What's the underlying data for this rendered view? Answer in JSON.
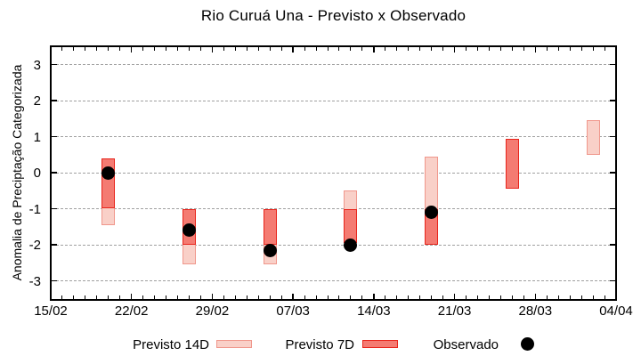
{
  "page": {
    "background": "#ffffff"
  },
  "chart_data": {
    "type": "range-bar+scatter",
    "title": "Rio Curuá Una - Previsto x Observado",
    "ylabel": "Anomalia de Preciptação Categorizada",
    "ylim": [
      -3.5,
      3.5
    ],
    "yticks": [
      3,
      2,
      1,
      0,
      -1,
      -2,
      -3
    ],
    "grid": "horizontal dashed lines at integer y values",
    "x_axis": {
      "total_days": 49,
      "major_tick_days": [
        0,
        7,
        14,
        21,
        28,
        35,
        42,
        49
      ],
      "tick_labels": [
        "15/02",
        "22/02",
        "29/02",
        "07/03",
        "14/03",
        "21/03",
        "28/03",
        "04/04"
      ],
      "minor_tick_every_days": 1
    },
    "legend": [
      {
        "label": "Previsto 14D",
        "swatch": "range-14d"
      },
      {
        "label": "Previsto 7D",
        "swatch": "range-7d"
      },
      {
        "label": "Observado",
        "swatch": "dot"
      }
    ],
    "colors": {
      "p14_fill": "#f9d0c8",
      "p14_border": "#f0978c",
      "p7_fill": "#f47b72",
      "p7_border": "#e8251c",
      "observed": "#000000",
      "grid": "#a0a0a0",
      "axis": "#000000"
    },
    "groups": [
      {
        "date": "20/02",
        "day": 5,
        "previsto_14d": [
          0.4,
          -1.45
        ],
        "previsto_7d": [
          0.4,
          -1.0
        ],
        "observado": 0.0
      },
      {
        "date": "27/02",
        "day": 12,
        "previsto_14d": [
          -1.0,
          -2.55
        ],
        "previsto_7d": [
          -1.0,
          -2.0
        ],
        "observado": -1.6
      },
      {
        "date": "05/03",
        "day": 19,
        "previsto_14d": [
          -1.0,
          -2.55
        ],
        "previsto_7d": [
          -1.0,
          -2.0
        ],
        "observado": -2.15
      },
      {
        "date": "12/03",
        "day": 26,
        "previsto_14d": [
          -0.5,
          -1.95
        ],
        "previsto_7d": [
          -1.0,
          -1.95
        ],
        "observado": -2.0
      },
      {
        "date": "19/03",
        "day": 33,
        "previsto_14d": [
          0.45,
          -2.0
        ],
        "previsto_7d": [
          -1.0,
          -2.0
        ],
        "observado": -1.1
      },
      {
        "date": "26/03",
        "day": 40,
        "previsto_14d": null,
        "previsto_7d": [
          0.95,
          -0.45
        ],
        "observado": null
      },
      {
        "date": "02/04",
        "day": 47,
        "previsto_14d": [
          1.45,
          0.5
        ],
        "previsto_7d": null,
        "observado": null
      }
    ]
  }
}
